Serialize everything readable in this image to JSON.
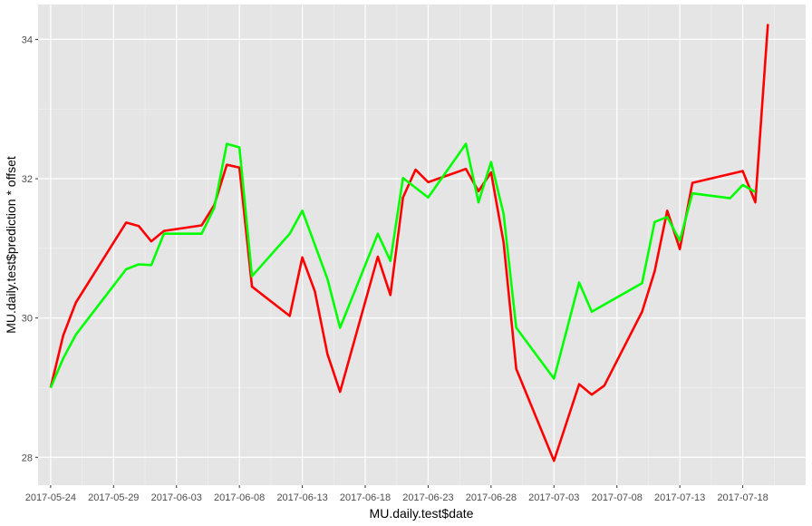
{
  "chart_data": {
    "type": "line",
    "xlabel": "MU.daily.test$date",
    "ylabel": "MU.daily.test$prediction * offset",
    "x_axis_type": "date",
    "xlim": [
      "2017-05-23",
      "2017-07-23"
    ],
    "ylim": [
      27.6,
      34.5
    ],
    "x_ticks": [
      "2017-05-24",
      "2017-05-29",
      "2017-06-03",
      "2017-06-08",
      "2017-06-13",
      "2017-06-18",
      "2017-06-23",
      "2017-06-28",
      "2017-07-03",
      "2017-07-08",
      "2017-07-13",
      "2017-07-18"
    ],
    "y_ticks": [
      28,
      30,
      32,
      34
    ],
    "grid": true,
    "background": "#e5e5e5",
    "legend": "none",
    "series": [
      {
        "color": "#ff0000",
        "points": [
          [
            "2017-05-24",
            29.0
          ],
          [
            "2017-05-25",
            29.75
          ],
          [
            "2017-05-26",
            30.22
          ],
          [
            "2017-05-30",
            31.37
          ],
          [
            "2017-05-31",
            31.32
          ],
          [
            "2017-06-01",
            31.1
          ],
          [
            "2017-06-02",
            31.25
          ],
          [
            "2017-06-05",
            31.33
          ],
          [
            "2017-06-06",
            31.62
          ],
          [
            "2017-06-07",
            32.2
          ],
          [
            "2017-06-08",
            32.16
          ],
          [
            "2017-06-09",
            30.45
          ],
          [
            "2017-06-12",
            30.03
          ],
          [
            "2017-06-13",
            30.87
          ],
          [
            "2017-06-14",
            30.38
          ],
          [
            "2017-06-15",
            29.48
          ],
          [
            "2017-06-16",
            28.94
          ],
          [
            "2017-06-19",
            30.88
          ],
          [
            "2017-06-20",
            30.33
          ],
          [
            "2017-06-21",
            31.73
          ],
          [
            "2017-06-22",
            32.13
          ],
          [
            "2017-06-23",
            31.95
          ],
          [
            "2017-06-26",
            32.14
          ],
          [
            "2017-06-27",
            31.82
          ],
          [
            "2017-06-28",
            32.09
          ],
          [
            "2017-06-29",
            31.08
          ],
          [
            "2017-06-30",
            29.27
          ],
          [
            "2017-07-03",
            27.95
          ],
          [
            "2017-07-05",
            29.05
          ],
          [
            "2017-07-06",
            28.9
          ],
          [
            "2017-07-07",
            29.03
          ],
          [
            "2017-07-10",
            30.09
          ],
          [
            "2017-07-11",
            30.67
          ],
          [
            "2017-07-12",
            31.54
          ],
          [
            "2017-07-13",
            30.99
          ],
          [
            "2017-07-14",
            31.94
          ],
          [
            "2017-07-18",
            32.11
          ],
          [
            "2017-07-19",
            31.66
          ],
          [
            "2017-07-20",
            34.22
          ]
        ]
      },
      {
        "color": "#00ff00",
        "points": [
          [
            "2017-05-24",
            29.0
          ],
          [
            "2017-05-25",
            29.42
          ],
          [
            "2017-05-26",
            29.76
          ],
          [
            "2017-05-30",
            30.7
          ],
          [
            "2017-05-31",
            30.77
          ],
          [
            "2017-06-01",
            30.76
          ],
          [
            "2017-06-02",
            31.21
          ],
          [
            "2017-06-05",
            31.21
          ],
          [
            "2017-06-06",
            31.58
          ],
          [
            "2017-06-07",
            32.5
          ],
          [
            "2017-06-08",
            32.45
          ],
          [
            "2017-06-09",
            30.6
          ],
          [
            "2017-06-12",
            31.21
          ],
          [
            "2017-06-13",
            31.54
          ],
          [
            "2017-06-15",
            30.56
          ],
          [
            "2017-06-16",
            29.86
          ],
          [
            "2017-06-19",
            31.21
          ],
          [
            "2017-06-20",
            30.82
          ],
          [
            "2017-06-21",
            32.01
          ],
          [
            "2017-06-23",
            31.73
          ],
          [
            "2017-06-26",
            32.5
          ],
          [
            "2017-06-27",
            31.66
          ],
          [
            "2017-06-28",
            32.24
          ],
          [
            "2017-06-29",
            31.49
          ],
          [
            "2017-06-30",
            29.86
          ],
          [
            "2017-07-03",
            29.13
          ],
          [
            "2017-07-05",
            30.51
          ],
          [
            "2017-07-06",
            30.09
          ],
          [
            "2017-07-10",
            30.5
          ],
          [
            "2017-07-11",
            31.38
          ],
          [
            "2017-07-12",
            31.45
          ],
          [
            "2017-07-13",
            31.11
          ],
          [
            "2017-07-14",
            31.79
          ],
          [
            "2017-07-17",
            31.72
          ],
          [
            "2017-07-18",
            31.91
          ],
          [
            "2017-07-19",
            31.81
          ]
        ]
      }
    ]
  }
}
